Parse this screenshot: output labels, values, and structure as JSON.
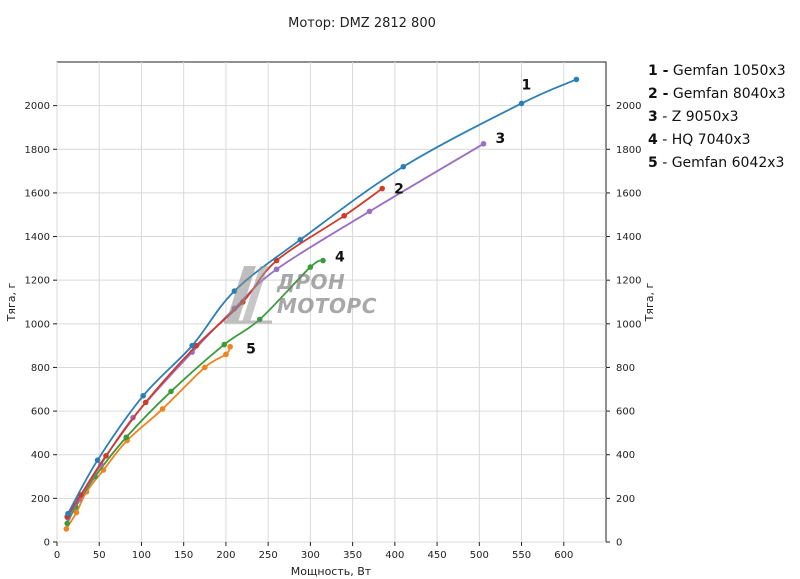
{
  "chart_data": {
    "type": "line",
    "title": "Мотор: DMZ 2812 800",
    "xlabel": "Мощность, Вт",
    "ylabel": "Тяга, г",
    "ylabel_right": "Тяга, г",
    "xlim": [
      0,
      650
    ],
    "ylim": [
      0,
      2200
    ],
    "xticks": [
      0,
      50,
      100,
      150,
      200,
      250,
      300,
      350,
      400,
      450,
      500,
      550,
      600
    ],
    "yticks": [
      0,
      200,
      400,
      600,
      800,
      1000,
      1200,
      1400,
      1600,
      1800,
      2000
    ],
    "grid": true,
    "series": [
      {
        "id": "1",
        "name": "Gemfan 1050x3",
        "color": "#2a7fb4",
        "x": [
          13,
          48,
          102,
          160,
          210,
          288,
          410,
          550,
          615
        ],
        "y": [
          130,
          375,
          670,
          900,
          1150,
          1385,
          1720,
          2010,
          2120
        ]
      },
      {
        "id": "2",
        "name": "Gemfan 8040x3",
        "color": "#d13a2b",
        "x": [
          12,
          28,
          58,
          105,
          165,
          220,
          260,
          340,
          385
        ],
        "y": [
          115,
          215,
          395,
          640,
          900,
          1100,
          1290,
          1495,
          1620
        ]
      },
      {
        "id": "3",
        "name": "Z 9050x3",
        "color": "#9a6fc2",
        "x": [
          13,
          26,
          52,
          90,
          160,
          210,
          260,
          370,
          505
        ],
        "y": [
          110,
          195,
          355,
          570,
          870,
          1070,
          1250,
          1515,
          1825
        ]
      },
      {
        "id": "4",
        "name": "HQ 7040x3",
        "color": "#3a9b3a",
        "x": [
          12,
          22,
          45,
          82,
          135,
          198,
          240,
          300,
          315
        ],
        "y": [
          85,
          160,
          300,
          480,
          690,
          905,
          1020,
          1260,
          1290
        ]
      },
      {
        "id": "5",
        "name": "Gemfan 6042x3",
        "color": "#f0831e",
        "x": [
          11,
          23,
          35,
          55,
          83,
          125,
          175,
          200,
          205
        ],
        "y": [
          60,
          135,
          230,
          330,
          465,
          610,
          800,
          860,
          895
        ]
      }
    ],
    "legend": [
      {
        "num": "1 -",
        "text": "Gemfan 1050x3"
      },
      {
        "num": "2 -",
        "text": "Gemfan 8040x3"
      },
      {
        "num": "3",
        "text": "- Z 9050x3"
      },
      {
        "num": "4",
        "text": "- HQ 7040x3"
      },
      {
        "num": "5",
        "text": "- Gemfan 6042x3"
      }
    ],
    "curve_labels": [
      {
        "text": "1",
        "series": "1"
      },
      {
        "text": "2",
        "series": "2"
      },
      {
        "text": "3",
        "series": "3"
      },
      {
        "text": "4",
        "series": "4"
      },
      {
        "text": "5",
        "series": "5"
      }
    ],
    "legend_position": "right-top",
    "watermark": {
      "line1": "ДРОН",
      "line2": "МОТОРС"
    }
  }
}
